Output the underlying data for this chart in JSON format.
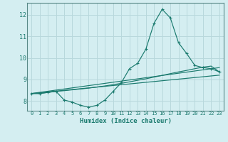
{
  "xlabel": "Humidex (Indice chaleur)",
  "bg_color": "#d4eef1",
  "line_color": "#1a7a6e",
  "grid_color": "#b8d8dc",
  "spine_color": "#5a8a88",
  "xlim": [
    -0.5,
    23.5
  ],
  "ylim": [
    7.55,
    12.55
  ],
  "xticks": [
    0,
    1,
    2,
    3,
    4,
    5,
    6,
    7,
    8,
    9,
    10,
    11,
    12,
    13,
    14,
    15,
    16,
    17,
    18,
    19,
    20,
    21,
    22,
    23
  ],
  "yticks": [
    8,
    9,
    10,
    11,
    12
  ],
  "line1_x": [
    0,
    1,
    2,
    3,
    4,
    5,
    6,
    7,
    8,
    9,
    10,
    11,
    12,
    13,
    14,
    15,
    16,
    17,
    18,
    19,
    20,
    21,
    22,
    23
  ],
  "line1_y": [
    8.35,
    8.35,
    8.4,
    8.45,
    8.05,
    7.95,
    7.8,
    7.72,
    7.8,
    8.05,
    8.45,
    8.85,
    9.5,
    9.75,
    10.4,
    11.6,
    12.25,
    11.85,
    10.7,
    10.2,
    9.65,
    9.55,
    9.5,
    9.35
  ],
  "line2_x": [
    0,
    1,
    2,
    3,
    4,
    5,
    6,
    7,
    8,
    9,
    10,
    11,
    12,
    13,
    14,
    15,
    16,
    17,
    18,
    19,
    20,
    21,
    22,
    23
  ],
  "line2_y": [
    8.35,
    8.35,
    8.4,
    8.45,
    8.48,
    8.52,
    8.56,
    8.6,
    8.65,
    8.7,
    8.76,
    8.82,
    8.89,
    8.96,
    9.03,
    9.11,
    9.19,
    9.27,
    9.35,
    9.42,
    9.5,
    9.57,
    9.62,
    9.35
  ],
  "line3_x": [
    0,
    23
  ],
  "line3_y": [
    8.35,
    9.55
  ],
  "line4_x": [
    0,
    23
  ],
  "line4_y": [
    8.35,
    9.2
  ]
}
